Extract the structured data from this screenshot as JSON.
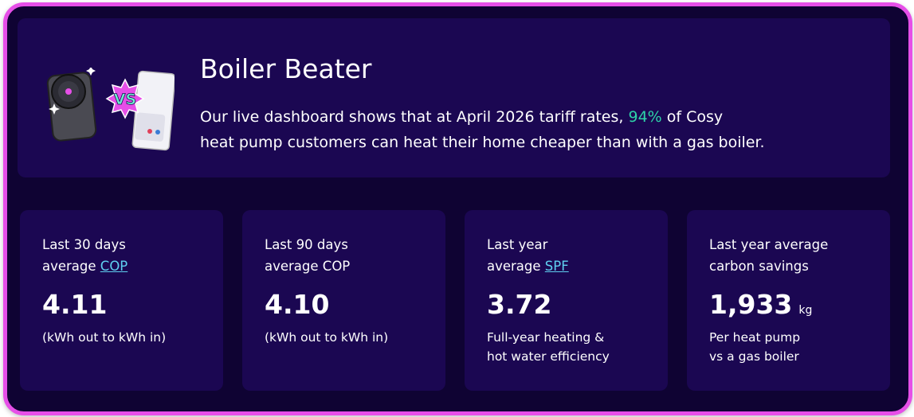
{
  "header": {
    "title": "Boiler Beater",
    "badge": "VS",
    "description": {
      "before": "Our live dashboard shows that at April 2026 tariff rates,",
      "highlight": "94%",
      "after": "of Cosy",
      "line2": "heat pump customers can heat their home cheaper than with a gas boiler."
    }
  },
  "cards": [
    {
      "label": [
        "Last 30 days",
        "average"
      ],
      "link": "COP",
      "value": "4.11",
      "note": [
        "(kWh out to kWh in)"
      ]
    },
    {
      "label": [
        "Last 90 days",
        "average COP"
      ],
      "value": "4.10",
      "note": [
        "(kWh out to kWh in)"
      ]
    },
    {
      "label": [
        "Last year",
        "average"
      ],
      "link": "SPF",
      "value": "3.72",
      "note": [
        "Full-year heating &",
        "hot water efficiency"
      ]
    },
    {
      "label": [
        "Last year average",
        "carbon savings"
      ],
      "value": "1,933",
      "unit": "kg",
      "note": [
        "Per heat pump",
        "vs a gas boiler"
      ]
    }
  ]
}
